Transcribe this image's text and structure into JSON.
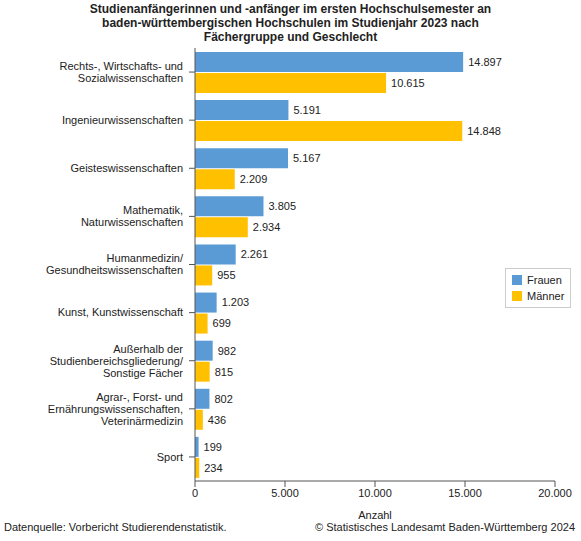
{
  "chart_data": {
    "type": "bar",
    "orientation": "horizontal",
    "title": "Studienanfängerinnen und -anfänger im ersten Hochschulsemester an baden-württembergischen Hochschulen im Studienjahr 2023 nach Fächergruppe und Geschlecht",
    "x_label": "Anzahl",
    "source": "Datenquelle: Vorbericht Studierendenstatistik.",
    "credit": "© Statistisches Landesamt Baden-Württemberg 2024",
    "categories": [
      "Rechts-, Wirtschafts- und Sozialwissenschaften",
      "Ingenieurwissenschaften",
      "Geisteswissenschaften",
      "Mathematik, Naturwissenschaften",
      "Humanmedizin/Gesundheitswissenschaften",
      "Kunst, Kunstwissenschaft",
      "Außerhalb der Studienbereichsgliederung/Sonstige Fächer",
      "Agrar-, Forst- und Ernährungswissenschaften, Veterinärmedizin",
      "Sport"
    ],
    "series": [
      {
        "name": "Frauen",
        "color": "#5b9bd5",
        "values": [
          14897,
          5191,
          5167,
          3805,
          2261,
          1203,
          982,
          802,
          199
        ],
        "value_labels": [
          "14.897",
          "5.191",
          "5.167",
          "3.805",
          "2.261",
          "1.203",
          "982",
          "802",
          "199"
        ]
      },
      {
        "name": "Männer",
        "color": "#ffc000",
        "values": [
          10615,
          14848,
          2209,
          2934,
          955,
          699,
          815,
          436,
          234
        ],
        "value_labels": [
          "10.615",
          "14.848",
          "2.209",
          "2.934",
          "955",
          "699",
          "815",
          "436",
          "234"
        ]
      }
    ],
    "xlim": [
      0,
      20000
    ],
    "xticks": [
      0,
      {
        "value": 5000,
        "label": "5.000"
      },
      {
        "value": 10000,
        "label": "10.000"
      },
      {
        "value": 15000,
        "label": "15.000"
      },
      {
        "value": 20000,
        "label": "20.000"
      }
    ],
    "grid": false,
    "legend": "right",
    "data_labels": true
  }
}
